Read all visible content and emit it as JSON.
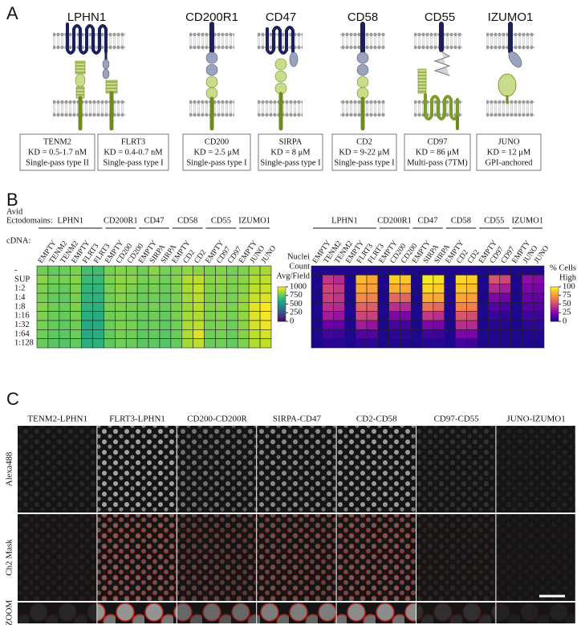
{
  "panel_a": {
    "letter": "A",
    "receptors": [
      "LPHN1",
      "CD200R1",
      "CD47",
      "CD58",
      "CD55",
      "IZUMO1"
    ],
    "ligands": [
      {
        "name": "TENM2",
        "kd": "KD = 0.5-1.7 nM",
        "type": "Single-pass type II"
      },
      {
        "name": "FLRT3",
        "kd": "KD = 0.4-0.7 nM",
        "type": "Single-pass type I"
      },
      {
        "name": "CD200",
        "kd": "KD = 2.5 μM",
        "type": "Single-pass type I"
      },
      {
        "name": "SIRPA",
        "kd": "KD = 8 μM",
        "type": "Single-pass type I"
      },
      {
        "name": "CD2",
        "kd": "KD = 9-22 μM",
        "type": "Single-pass type I"
      },
      {
        "name": "CD97",
        "kd": "KD = 86 μM",
        "type": "Multi-pass (7TM)"
      },
      {
        "name": "JUNO",
        "kd": "KD = 12 μM",
        "type": "GPI-anchored"
      }
    ]
  },
  "panel_b": {
    "letter": "B",
    "group_heading": [
      "Avid",
      "Ectodomains:"
    ],
    "cdna_heading": "cDNA:"
  },
  "chart_data": [
    {
      "type": "heatmap",
      "groups": [
        {
          "name": "LPHN1",
          "categories": [
            "EMPTY",
            "TENM2",
            "TENM2",
            "EMPTY",
            "FLRT3",
            "FLRT3"
          ]
        },
        {
          "name": "CD200R1",
          "categories": [
            "EMPTY",
            "CD200",
            "CD200"
          ]
        },
        {
          "name": "CD47",
          "categories": [
            "EMPTY",
            "SIRPA",
            "SIRPA"
          ]
        },
        {
          "name": "CD58",
          "categories": [
            "EMPTY",
            "CD2",
            "CD2"
          ]
        },
        {
          "name": "CD55",
          "categories": [
            "EMPTY",
            "CD97",
            "CD97"
          ]
        },
        {
          "name": "IZUMO1",
          "categories": [
            "EMPTY",
            "JUNO",
            "JUNO"
          ]
        }
      ],
      "y": [
        "-",
        "SUP",
        "1:2",
        "1:4",
        "1:8",
        "1:16",
        "1:32",
        "1:64",
        "1:128"
      ],
      "values": [
        [
          780,
          760,
          770,
          800,
          700,
          690,
          790,
          810,
          800,
          780,
          820,
          790,
          800,
          830,
          820,
          800,
          810,
          790,
          800,
          850,
          860
        ],
        [
          820,
          780,
          790,
          810,
          680,
          670,
          800,
          830,
          820,
          790,
          800,
          780,
          810,
          880,
          900,
          820,
          830,
          800,
          820,
          880,
          900
        ],
        [
          800,
          770,
          760,
          800,
          660,
          650,
          790,
          820,
          800,
          780,
          790,
          770,
          800,
          870,
          910,
          810,
          820,
          800,
          820,
          900,
          920
        ],
        [
          790,
          760,
          750,
          790,
          650,
          640,
          780,
          810,
          790,
          770,
          780,
          760,
          790,
          860,
          900,
          800,
          810,
          790,
          830,
          920,
          950
        ],
        [
          810,
          780,
          770,
          800,
          640,
          630,
          790,
          800,
          790,
          780,
          790,
          770,
          800,
          850,
          890,
          810,
          820,
          800,
          840,
          960,
          1000
        ],
        [
          800,
          770,
          760,
          790,
          620,
          610,
          780,
          790,
          780,
          770,
          780,
          760,
          790,
          860,
          880,
          800,
          810,
          790,
          830,
          950,
          990
        ],
        [
          790,
          760,
          750,
          780,
          600,
          610,
          770,
          800,
          790,
          760,
          770,
          750,
          780,
          870,
          900,
          790,
          800,
          780,
          820,
          930,
          980
        ],
        [
          780,
          750,
          740,
          770,
          600,
          620,
          760,
          790,
          780,
          750,
          760,
          740,
          770,
          880,
          950,
          780,
          790,
          770,
          810,
          900,
          940
        ],
        [
          770,
          740,
          730,
          760,
          620,
          630,
          750,
          780,
          770,
          740,
          750,
          730,
          760,
          860,
          900,
          770,
          780,
          760,
          800,
          880,
          900
        ]
      ],
      "zlim": [
        0,
        1000
      ],
      "zticks": [
        0,
        250,
        500,
        750,
        1000
      ],
      "colormap": "viridis",
      "colorbar_label": [
        "Nuclei",
        "Count",
        "Avg/Field"
      ]
    },
    {
      "type": "heatmap",
      "groups": [
        {
          "name": "LPHN1",
          "categories": [
            "EMPTY",
            "TENM2",
            "TENM2",
            "EMPTY",
            "FLRT3",
            "FLRT3"
          ]
        },
        {
          "name": "CD200R1",
          "categories": [
            "EMPTY",
            "CD200",
            "CD200"
          ]
        },
        {
          "name": "CD47",
          "categories": [
            "EMPTY",
            "SIRPA",
            "SIRPA"
          ]
        },
        {
          "name": "CD58",
          "categories": [
            "EMPTY",
            "CD2",
            "CD2"
          ]
        },
        {
          "name": "CD55",
          "categories": [
            "EMPTY",
            "CD97",
            "CD97"
          ]
        },
        {
          "name": "IZUMO1",
          "categories": [
            "EMPTY",
            "JUNO",
            "JUNO"
          ]
        }
      ],
      "values": [
        [
          3,
          4,
          4,
          3,
          4,
          4,
          3,
          4,
          4,
          3,
          4,
          4,
          3,
          4,
          4,
          3,
          4,
          4,
          3,
          4,
          3
        ],
        [
          3,
          45,
          40,
          3,
          85,
          80,
          3,
          90,
          88,
          3,
          97,
          95,
          3,
          92,
          90,
          3,
          55,
          50,
          3,
          30,
          28
        ],
        [
          3,
          50,
          45,
          3,
          80,
          78,
          3,
          82,
          80,
          3,
          92,
          90,
          3,
          88,
          86,
          3,
          40,
          36,
          3,
          25,
          24
        ],
        [
          3,
          48,
          44,
          3,
          72,
          70,
          3,
          62,
          60,
          3,
          82,
          80,
          3,
          80,
          78,
          3,
          25,
          22,
          3,
          20,
          18
        ],
        [
          3,
          42,
          40,
          3,
          60,
          58,
          3,
          42,
          40,
          3,
          65,
          62,
          3,
          70,
          68,
          3,
          15,
          12,
          3,
          15,
          14
        ],
        [
          3,
          35,
          32,
          3,
          50,
          48,
          3,
          25,
          24,
          3,
          45,
          42,
          3,
          55,
          52,
          3,
          8,
          7,
          3,
          10,
          9
        ],
        [
          3,
          20,
          18,
          3,
          35,
          32,
          3,
          12,
          11,
          3,
          25,
          24,
          3,
          42,
          40,
          3,
          5,
          5,
          3,
          6,
          6
        ],
        [
          3,
          10,
          9,
          3,
          15,
          14,
          3,
          6,
          6,
          3,
          10,
          9,
          3,
          25,
          24,
          3,
          4,
          4,
          3,
          4,
          4
        ],
        [
          3,
          5,
          5,
          3,
          6,
          6,
          3,
          4,
          4,
          3,
          5,
          5,
          3,
          10,
          9,
          3,
          4,
          4,
          3,
          3,
          3
        ]
      ],
      "zlim": [
        0,
        100
      ],
      "zticks": [
        0,
        25,
        50,
        75,
        100
      ],
      "colormap": "plasma",
      "colorbar_label": [
        "% Cells",
        "High"
      ]
    }
  ],
  "panel_c": {
    "letter": "C",
    "columns": [
      "TENM2-LPHN1",
      "FLRT3-LPHN1",
      "CD200-CD200R",
      "SIRPA-CD47",
      "CD2-CD58",
      "CD97-CD55",
      "JUNO-IZUMO1"
    ],
    "rows": [
      "Alexa488",
      "Ch2 Mask",
      "ZOOM"
    ]
  }
}
